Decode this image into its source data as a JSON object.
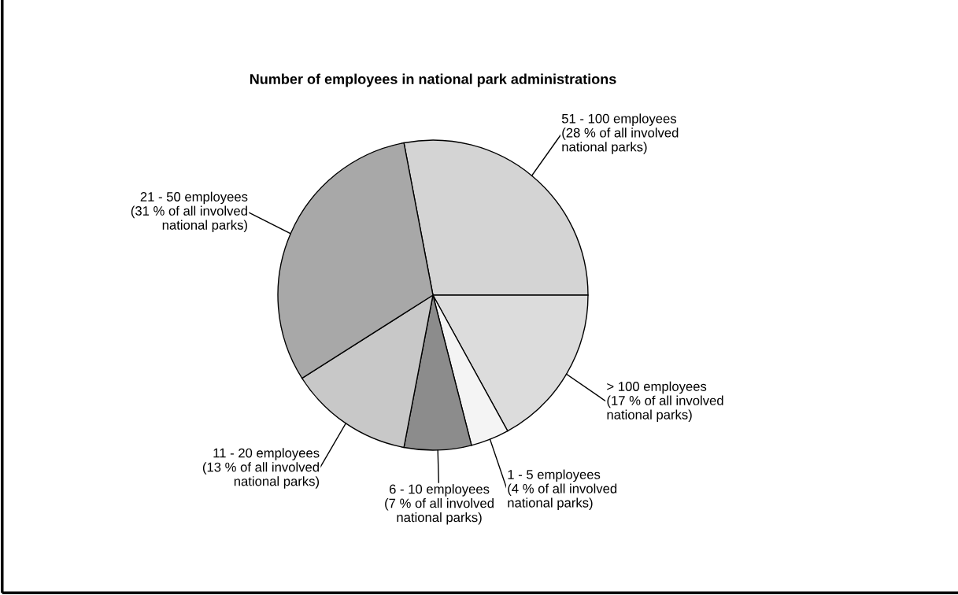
{
  "chart_data": {
    "type": "pie",
    "title": "Number of employees in national park administrations",
    "categories": [
      "51 - 100 employees",
      "> 100 employees",
      "1 - 5 employees",
      "6 - 10 employees",
      "11 - 20 employees",
      "21 - 50 employees"
    ],
    "values": [
      28,
      17,
      4,
      7,
      13,
      31
    ],
    "value_labels": [
      "(28 % of all involved\nnational parks)",
      "(17 % of all involved\nnational parks)",
      "(4 % of all involved\nnational parks)",
      "(7 % of all involved\nnational parks)",
      "(13 % of all involved\nnational parks)",
      "(31 % of all involved\nnational parks)"
    ],
    "colors": [
      "#d4d4d4",
      "#dcdcdc",
      "#f4f4f4",
      "#8c8c8c",
      "#c8c8c8",
      "#a8a8a8"
    ]
  }
}
